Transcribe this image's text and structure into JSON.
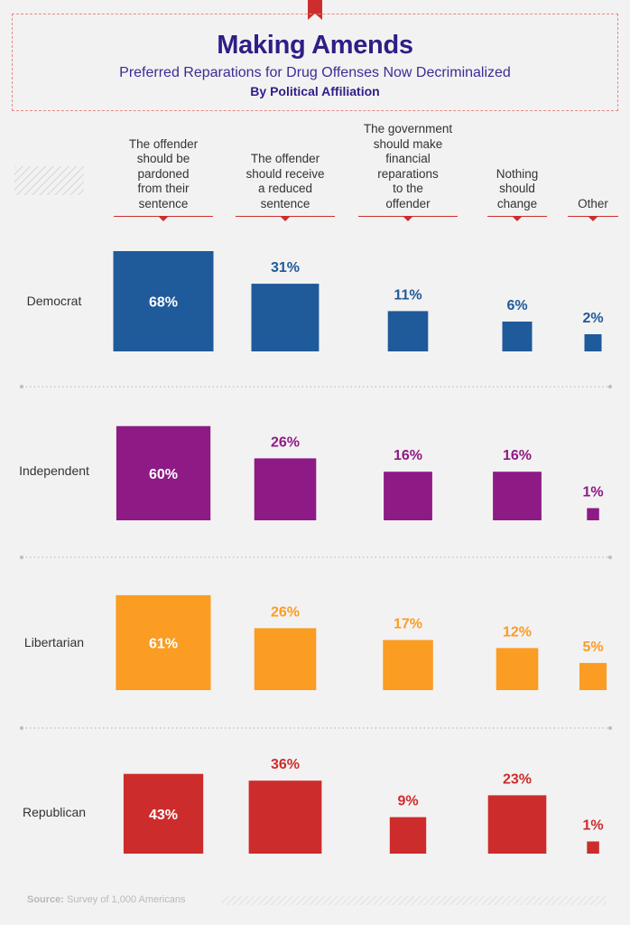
{
  "header": {
    "title": "Making Amends",
    "subtitle": "Preferred Reparations for Drug Offenses Now Decriminalized",
    "subtitle2": "By Political Affiliation"
  },
  "source": {
    "label": "Source:",
    "text": "Survey of 1,000 Americans"
  },
  "chart_data": {
    "type": "bar",
    "title": "Making Amends",
    "subtitle": "Preferred Reparations for Drug Offenses Now Decriminalized",
    "categories": [
      "The offender should be pardoned from their sentence",
      "The offender should receive a reduced sentence",
      "The government should make financial reparations to the offender",
      "Nothing should change",
      "Other"
    ],
    "category_display": [
      "The offender\nshould be\npardoned\nfrom their\nsentence",
      "The offender\nshould receive\na reduced\nsentence",
      "The government\nshould make\nfinancial\nreparations\nto the\noffender",
      "Nothing\nshould\nchange",
      "Other"
    ],
    "unit": "%",
    "series": [
      {
        "name": "Democrat",
        "color": "#1f5a9a",
        "values": [
          68,
          31,
          11,
          6,
          2
        ]
      },
      {
        "name": "Independent",
        "color": "#8e1a86",
        "values": [
          60,
          26,
          16,
          16,
          1
        ]
      },
      {
        "name": "Libertarian",
        "color": "#fb9c23",
        "values": [
          61,
          26,
          17,
          12,
          5
        ]
      },
      {
        "name": "Republican",
        "color": "#cd2c2c",
        "values": [
          43,
          36,
          9,
          23,
          1
        ]
      }
    ]
  },
  "colors": {
    "title": "#2e1e86",
    "accent": "#cc2d2d",
    "divider": "#c8c8c8"
  }
}
